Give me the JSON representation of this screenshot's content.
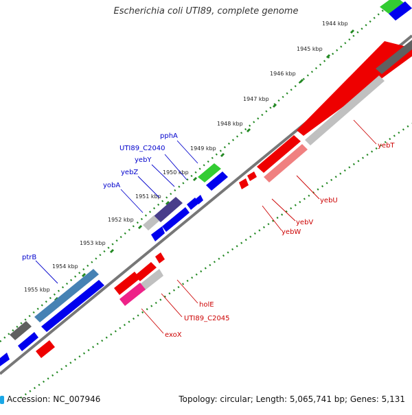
{
  "title": "Escherichia coli UTI89, complete genome",
  "footer": {
    "accession": "Accession: NC_007946",
    "topology": "Topology: circular; Length: 5,065,741 bp; Genes: 5,131"
  },
  "colors": {
    "cds_blue": "#0000ee",
    "gene_gray": "#c0c0c0",
    "dark_gray": "#606060",
    "red": "#ee0000",
    "pink": "#f08080",
    "green": "#33cc33",
    "magenta": "#ee2288",
    "steel": "#4682b4",
    "slate": "#483d8b",
    "tick_green": "#228822",
    "label_blue": "#0000cc",
    "label_red": "#cc0000"
  },
  "kbp_labels": [
    "1944 kbp",
    "1945 kbp",
    "1946 kbp",
    "1947 kbp",
    "1948 kbp",
    "1949 kbp",
    "1950 kbp",
    "1951 kbp",
    "1952 kbp",
    "1953 kbp",
    "1954 kbp",
    "1955 kbp"
  ],
  "gene_labels_blue": [
    "pphA",
    "UTI89_C2040",
    "yebY",
    "yebZ",
    "yobA",
    "ptrB"
  ],
  "gene_labels_red": [
    "yebT",
    "yebU",
    "yebV",
    "yebW",
    "holE",
    "UTI89_C2045",
    "exoX"
  ]
}
